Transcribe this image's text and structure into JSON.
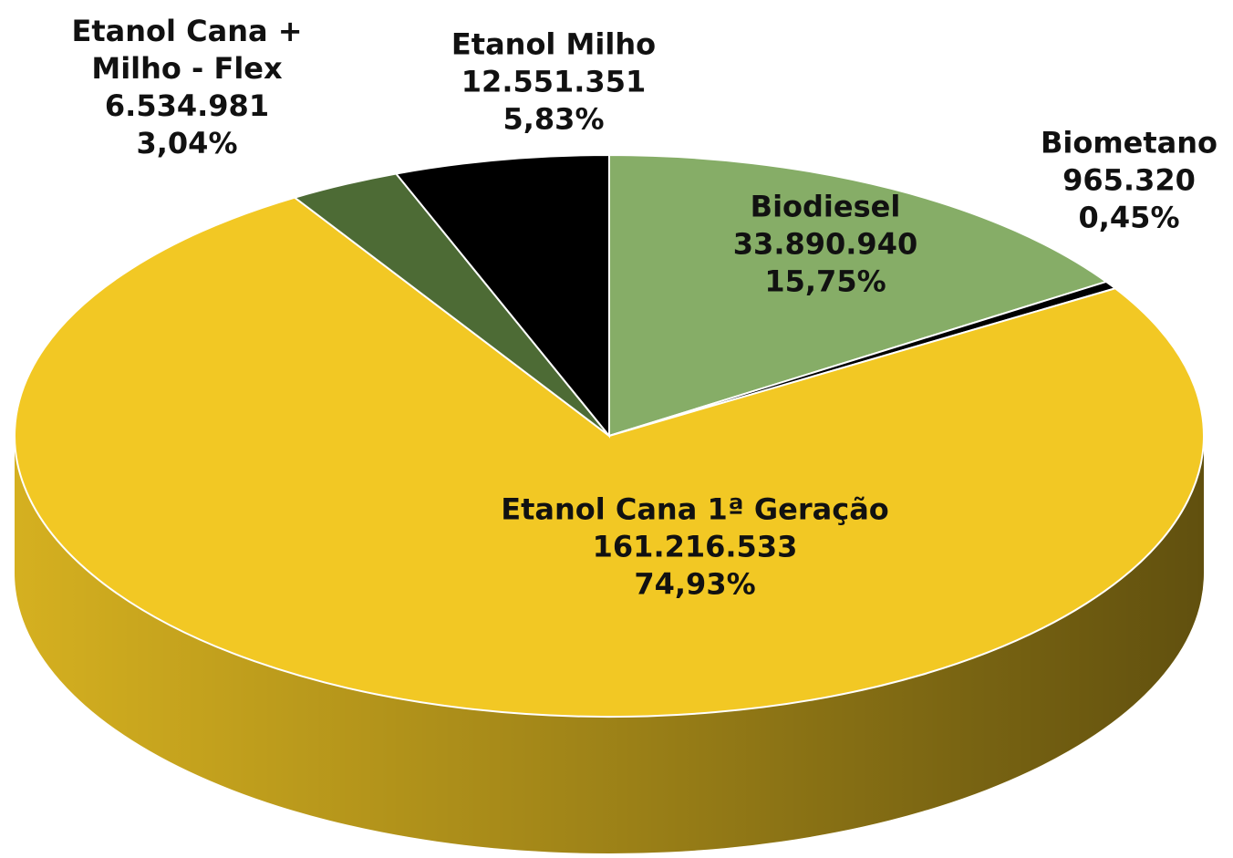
{
  "chart_data": {
    "type": "pie",
    "categories": [
      "Biodiesel",
      "Biometano",
      "Etanol Cana 1ª Geração",
      "Etanol Cana + Milho - Flex",
      "Etanol Milho"
    ],
    "values": [
      33890940,
      965320,
      161216533,
      6534981,
      12551351
    ],
    "value_labels": [
      "33.890.940",
      "965.320",
      "161.216.533",
      "6.534.981",
      "12.551.351"
    ],
    "percent_labels": [
      "15,75%",
      "0,45%",
      "74,93%",
      "3,04%",
      "5,83%"
    ],
    "colors": [
      "#86ad67",
      "#000000",
      "#f2c824",
      "#4d6b35",
      "#000000"
    ]
  }
}
